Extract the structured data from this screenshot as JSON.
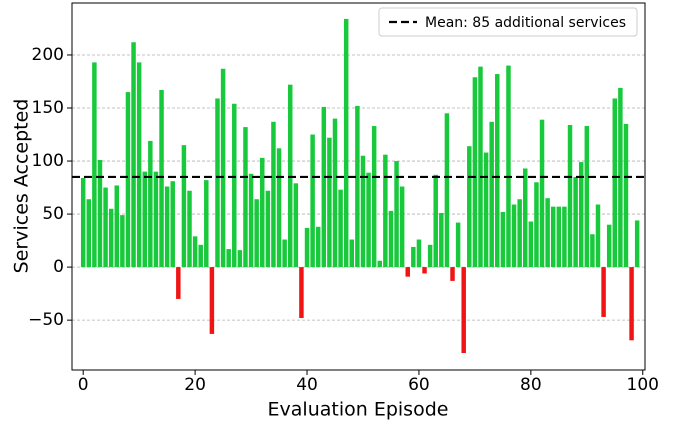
{
  "chart_data": {
    "type": "bar",
    "x_label": "Evaluation Episode",
    "y_label": "Services Accepted",
    "categories": [
      0,
      1,
      2,
      3,
      4,
      5,
      6,
      7,
      8,
      9,
      10,
      11,
      12,
      13,
      14,
      15,
      16,
      17,
      18,
      19,
      20,
      21,
      22,
      23,
      24,
      25,
      26,
      27,
      28,
      29,
      30,
      31,
      32,
      33,
      34,
      35,
      36,
      37,
      38,
      39,
      40,
      41,
      42,
      43,
      44,
      45,
      46,
      47,
      48,
      49,
      50,
      51,
      52,
      53,
      54,
      55,
      56,
      57,
      58,
      59,
      60,
      61,
      62,
      63,
      64,
      65,
      66,
      67,
      68,
      69,
      70,
      71,
      72,
      73,
      74,
      75,
      76,
      77,
      78,
      79,
      80,
      81,
      82,
      83,
      84,
      85,
      86,
      87,
      88,
      89,
      90,
      91,
      92,
      93,
      94,
      95,
      96,
      97,
      98,
      99
    ],
    "values": [
      84,
      64,
      193,
      101,
      75,
      55,
      77,
      49,
      165,
      212,
      193,
      90,
      119,
      90,
      167,
      76,
      81,
      -30,
      115,
      72,
      29,
      21,
      82,
      -63,
      159,
      187,
      17,
      154,
      16,
      132,
      88,
      64,
      103,
      72,
      137,
      112,
      26,
      172,
      79,
      -48,
      37,
      125,
      38,
      151,
      122,
      140,
      73,
      234,
      26,
      152,
      105,
      89,
      133,
      6,
      106,
      53,
      100,
      76,
      -9,
      19,
      26,
      -6,
      21,
      87,
      51,
      145,
      -13,
      42,
      -81,
      114,
      179,
      189,
      108,
      137,
      182,
      52,
      190,
      59,
      64,
      93,
      43,
      80,
      139,
      65,
      57,
      57,
      57,
      134,
      85,
      99,
      133,
      31,
      59,
      -47,
      40,
      159,
      169,
      135,
      -69,
      44
    ],
    "color_positive": "#17c93b",
    "color_negative": "#f01414",
    "mean": {
      "value": 85,
      "label": "Mean: 85 additional services",
      "color": "#000000"
    },
    "legend": "upper right",
    "xlim": [
      -2,
      100.4
    ],
    "xticks": [
      0,
      20,
      40,
      60,
      80,
      100
    ],
    "ylim": [
      -97,
      249
    ],
    "yticks": [
      {
        "value": -50,
        "label": "−50"
      },
      0,
      50,
      100,
      150,
      200
    ],
    "grid": true
  }
}
